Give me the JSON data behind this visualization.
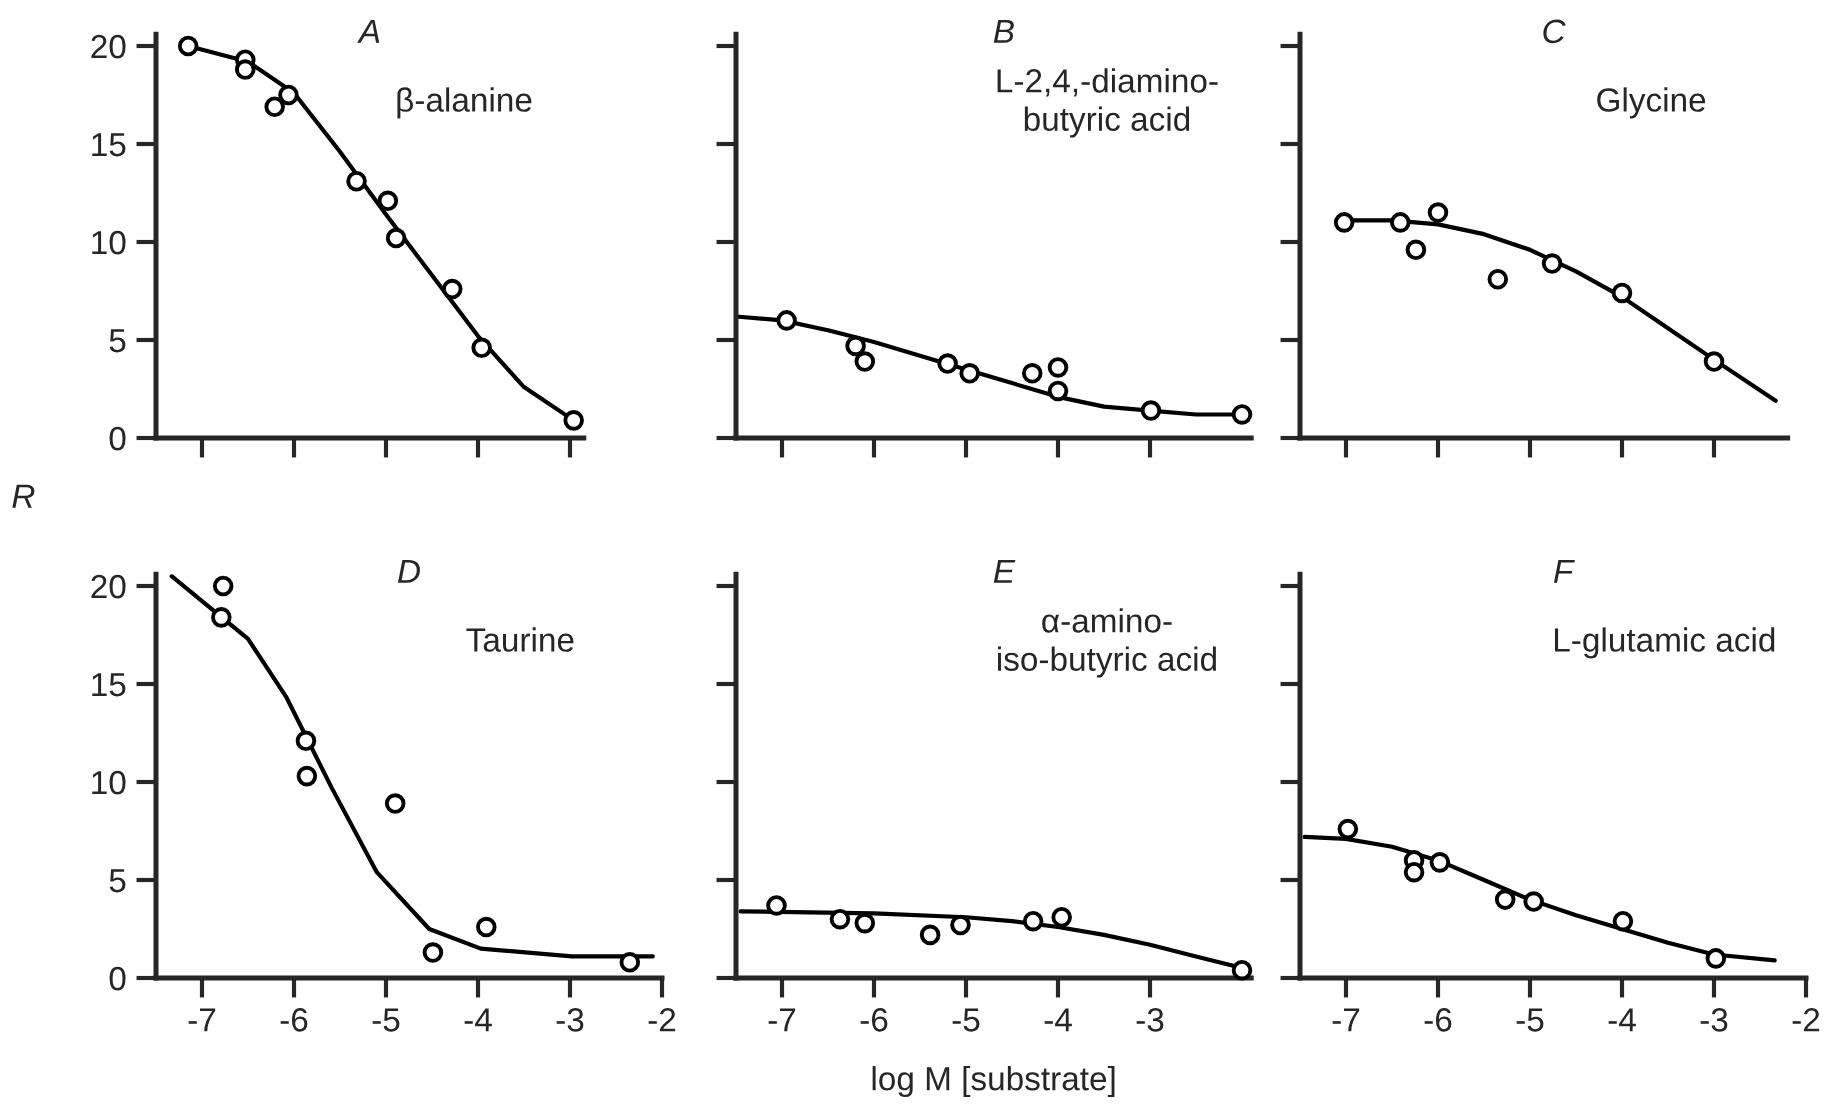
{
  "chart_data": [
    {
      "type": "line",
      "annotations": [
        "A",
        "β-alanine"
      ],
      "ylabel": "R",
      "xlim": [
        -7.5,
        -2.85
      ],
      "ylim": [
        0,
        20.6
      ],
      "xticks": [
        -7,
        -6,
        -5,
        -4,
        -3
      ],
      "yticks": [
        0,
        5,
        10,
        15,
        20
      ],
      "tick_labels": "y",
      "series": [
        {
          "type": "scatter",
          "marker": "circle",
          "color": "#000000",
          "x": [
            -7.15,
            -6.53,
            -6.53,
            -6.21,
            -6.06,
            -5.32,
            -4.98,
            -4.89,
            -4.28,
            -3.96,
            -2.96
          ],
          "values": [
            20,
            19.3,
            18.8,
            16.9,
            17.5,
            13.1,
            12.1,
            10.2,
            7.6,
            4.6,
            0.9
          ]
        },
        {
          "color": "#000000",
          "x": [
            -7.15,
            -6.5,
            -6,
            -5.5,
            -5,
            -4.5,
            -4,
            -3.5,
            -2.96
          ],
          "values": [
            20,
            19.2,
            17.6,
            14.6,
            11.4,
            8.3,
            5.2,
            2.6,
            0.9
          ]
        }
      ]
    },
    {
      "type": "line",
      "annotations": [
        "B",
        "L-2,4,-diamino-\nbutyric acid"
      ],
      "xlim": [
        -7.5,
        -1.9
      ],
      "ylim": [
        0,
        20.6
      ],
      "xticks": [
        -7,
        -6,
        -5,
        -4,
        -3
      ],
      "yticks": [
        0,
        5,
        10,
        15,
        20
      ],
      "tick_labels": false,
      "series": [
        {
          "type": "scatter",
          "marker": "circle",
          "color": "#000000",
          "x": [
            -6.95,
            -6.2,
            -6.1,
            -5.2,
            -4.96,
            -4.28,
            -4.0,
            -4.0,
            -2.99,
            -2.0
          ],
          "values": [
            6.0,
            4.7,
            3.9,
            3.8,
            3.3,
            3.3,
            3.6,
            2.4,
            1.4,
            1.2
          ]
        },
        {
          "color": "#000000",
          "x": [
            -7.5,
            -7,
            -6.5,
            -6,
            -5.5,
            -5,
            -4.5,
            -4,
            -3.5,
            -3,
            -2.5,
            -1.9
          ],
          "values": [
            6.2,
            6.0,
            5.5,
            4.9,
            4.2,
            3.5,
            2.8,
            2.1,
            1.6,
            1.4,
            1.2,
            1.2
          ]
        }
      ]
    },
    {
      "type": "line",
      "annotations": [
        "C",
        "Glycine"
      ],
      "xlim": [
        -7.5,
        -2.2
      ],
      "ylim": [
        0,
        20.6
      ],
      "xticks": [
        -7,
        -6,
        -5,
        -4,
        -3
      ],
      "yticks": [
        0,
        5,
        10,
        15,
        20
      ],
      "tick_labels": false,
      "series": [
        {
          "type": "scatter",
          "marker": "circle",
          "color": "#000000",
          "x": [
            -7.02,
            -6.41,
            -6.24,
            -6.0,
            -5.35,
            -4.76,
            -4.0,
            -3.0
          ],
          "values": [
            11.0,
            11.0,
            9.6,
            11.5,
            8.1,
            8.9,
            7.4,
            3.9
          ]
        },
        {
          "color": "#000000",
          "x": [
            -7.02,
            -6.5,
            -6,
            -5.5,
            -5,
            -4.5,
            -4,
            -3.5,
            -3,
            -2.33
          ],
          "values": [
            11.1,
            11.1,
            10.9,
            10.4,
            9.6,
            8.5,
            7.2,
            5.6,
            4.0,
            1.9
          ]
        }
      ]
    },
    {
      "type": "line",
      "annotations": [
        "D",
        "Taurine"
      ],
      "xlim": [
        -7.5,
        -2
      ],
      "ylim": [
        0,
        20.6
      ],
      "xticks": [
        -7,
        -6,
        -5,
        -4,
        -3,
        -2
      ],
      "yticks": [
        0,
        5,
        10,
        15,
        20
      ],
      "series": [
        {
          "type": "scatter",
          "marker": "circle",
          "color": "#000000",
          "x": [
            -6.77,
            -6.79,
            -5.87,
            -5.86,
            -4.9,
            -4.49,
            -3.91,
            -2.35
          ],
          "values": [
            20.0,
            18.4,
            12.1,
            10.3,
            8.9,
            1.3,
            2.6,
            0.8
          ]
        },
        {
          "color": "#000000",
          "x": [
            -7.33,
            -6.5,
            -6.08,
            -5.59,
            -5.1,
            -4.53,
            -3.97,
            -2.98,
            -2.1
          ],
          "values": [
            20.5,
            17.3,
            14.3,
            9.7,
            5.4,
            2.5,
            1.5,
            1.1,
            1.1
          ]
        }
      ]
    },
    {
      "type": "line",
      "annotations": [
        "E",
        "α-amino-\niso-butyric acid"
      ],
      "xlabel": "log M [substrate]",
      "xlim": [
        -7.5,
        -1.9
      ],
      "ylim": [
        0,
        20.6
      ],
      "xticks": [
        -7,
        -6,
        -5,
        -4,
        -3
      ],
      "yticks": [
        0,
        5,
        10,
        15,
        20
      ],
      "tick_labels": "x",
      "series": [
        {
          "type": "scatter",
          "marker": "circle",
          "color": "#000000",
          "x": [
            -7.06,
            -6.37,
            -6.1,
            -5.39,
            -5.06,
            -4.27,
            -3.96,
            -2.0
          ],
          "values": [
            3.7,
            3.0,
            2.8,
            2.2,
            2.7,
            2.9,
            3.1,
            0.4
          ]
        },
        {
          "color": "#000000",
          "x": [
            -7.45,
            -6,
            -5,
            -4.5,
            -4,
            -3.5,
            -3,
            -2.5,
            -1.9
          ],
          "values": [
            3.4,
            3.3,
            3.1,
            2.9,
            2.6,
            2.2,
            1.7,
            1.1,
            0.4
          ]
        }
      ]
    },
    {
      "type": "line",
      "annotations": [
        "F",
        "L-glutamic acid"
      ],
      "xlim": [
        -7.5,
        -2
      ],
      "ylim": [
        0,
        20.6
      ],
      "xticks": [
        -7,
        -6,
        -5,
        -4,
        -3,
        -2
      ],
      "yticks": [
        0,
        5,
        10,
        15,
        20
      ],
      "tick_labels": "x",
      "series": [
        {
          "type": "scatter",
          "marker": "circle",
          "color": "#000000",
          "x": [
            -6.98,
            -6.26,
            -6.26,
            -5.98,
            -5.27,
            -4.96,
            -3.99,
            -2.98
          ],
          "values": [
            7.6,
            6.0,
            5.4,
            5.9,
            4.0,
            3.9,
            2.9,
            1.0
          ]
        },
        {
          "color": "#000000",
          "x": [
            -7.45,
            -7,
            -6.5,
            -6,
            -5.5,
            -5,
            -4.5,
            -4,
            -3.5,
            -3,
            -2.34
          ],
          "values": [
            7.2,
            7.1,
            6.7,
            6.0,
            5.0,
            4.0,
            3.2,
            2.5,
            1.8,
            1.2,
            0.9
          ]
        }
      ]
    }
  ]
}
